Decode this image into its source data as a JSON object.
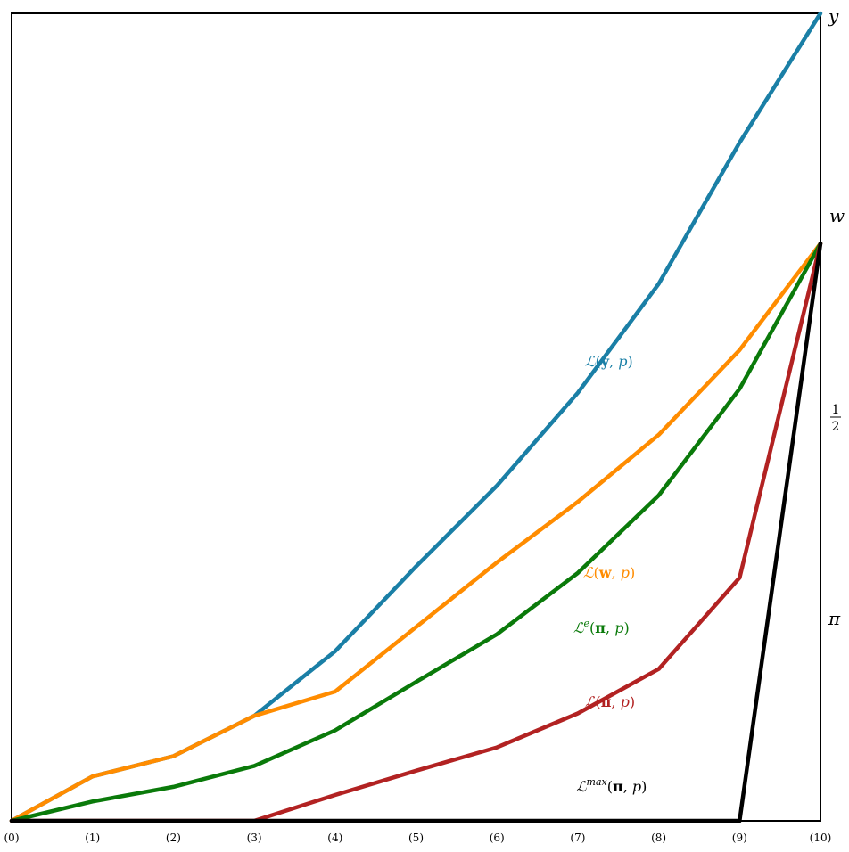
{
  "chart_data": {
    "type": "line",
    "categories": [
      "(0)",
      "(1)",
      "(2)",
      "(3)",
      "(4)",
      "(5)",
      "(6)",
      "(7)",
      "(8)",
      "(9)",
      "(10)"
    ],
    "ylim": [
      0,
      1
    ],
    "grid": false,
    "legend": "none",
    "right_axis_labels": {
      "y": "y",
      "w": "w",
      "half_num": "1",
      "half_den": "2",
      "pi": "π"
    },
    "series": [
      {
        "label_script": "ℒ",
        "label_sup": "",
        "label_arg": "y",
        "label_rest": ", ",
        "label_p": "p",
        "label_close": ")",
        "color": "#1a7fa6",
        "values": [
          0,
          0.055,
          0.08,
          0.13,
          0.21,
          0.315,
          0.415,
          0.53,
          0.665,
          0.84,
          1.0
        ]
      },
      {
        "label_script": "ℒ",
        "label_sup": "",
        "label_arg": "w",
        "label_rest": ", ",
        "label_p": "p",
        "label_close": ")",
        "color": "#ff8c00",
        "values": [
          0,
          0.055,
          0.08,
          0.13,
          0.16,
          0.24,
          0.32,
          0.395,
          0.478,
          0.583,
          0.715
        ]
      },
      {
        "label_script": "ℒ",
        "label_sup": "e",
        "label_arg": "π",
        "label_rest": ", ",
        "label_p": "p",
        "label_close": ")",
        "color": "#0a7a0a",
        "values": [
          0,
          0.024,
          0.042,
          0.068,
          0.112,
          0.172,
          0.231,
          0.307,
          0.403,
          0.535,
          0.715
        ]
      },
      {
        "label_script": "ℒ",
        "label_sup": "",
        "label_arg": "π",
        "label_rest": ", ",
        "label_p": "p",
        "label_close": ")",
        "color": "#b22222",
        "values": [
          0,
          0,
          0,
          0,
          0.032,
          0.062,
          0.091,
          0.133,
          0.188,
          0.301,
          0.715
        ]
      },
      {
        "label_script": "ℒ",
        "label_sup": "max",
        "label_arg": "π",
        "label_rest": ", ",
        "label_p": "p",
        "label_close": ")",
        "color": "#000000",
        "values": [
          0,
          0,
          0,
          0,
          0,
          0,
          0,
          0,
          0,
          0,
          0.715
        ]
      }
    ]
  }
}
